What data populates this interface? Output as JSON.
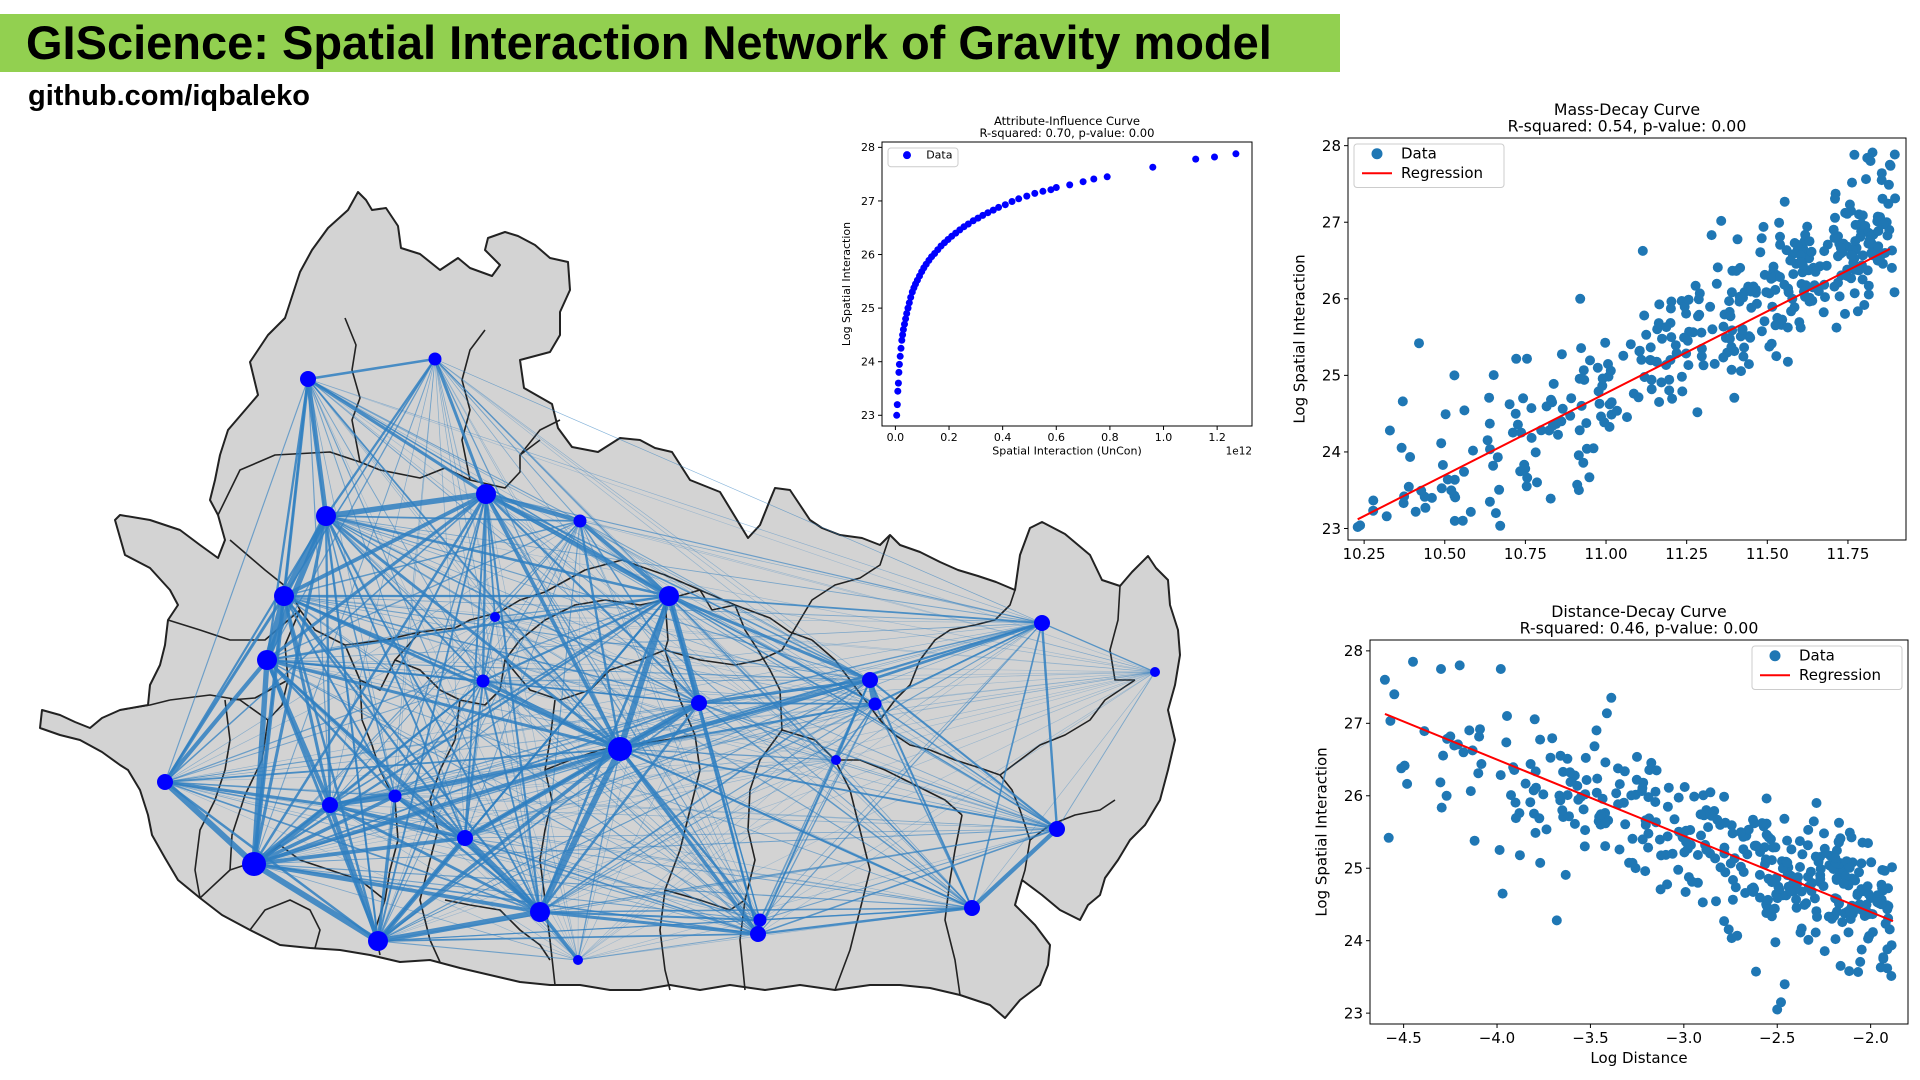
{
  "header": {
    "title": "GIScience: Spatial Interaction Network of Gravity model",
    "subtitle": "github.com/iqbaleko"
  },
  "colors": {
    "title_bar": "#92d050",
    "map_fill": "#d3d3d3",
    "map_border": "#222222",
    "edge": "#2f7fc1",
    "node": "#0000ff",
    "scatter": "#1f77b4",
    "regression": "#ff0000"
  },
  "map": {
    "nodes": [
      {
        "id": "n1",
        "size": 3
      },
      {
        "id": "n2",
        "size": 2
      },
      {
        "id": "n3",
        "size": 4
      },
      {
        "id": "n4",
        "size": 4
      },
      {
        "id": "n5",
        "size": 2
      },
      {
        "id": "n6",
        "size": 4
      },
      {
        "id": "n7",
        "size": 4
      },
      {
        "id": "n8",
        "size": 1
      },
      {
        "id": "n9",
        "size": 4
      },
      {
        "id": "n10",
        "size": 2
      },
      {
        "id": "n11",
        "size": 1
      },
      {
        "id": "n12",
        "size": 3
      },
      {
        "id": "n13",
        "size": 3
      },
      {
        "id": "n14",
        "size": 2
      },
      {
        "id": "n15",
        "size": 3
      },
      {
        "id": "n16",
        "size": 5
      },
      {
        "id": "n17",
        "size": 4
      },
      {
        "id": "n18",
        "size": 1
      },
      {
        "id": "n19",
        "size": 3
      },
      {
        "id": "n20",
        "size": 3
      },
      {
        "id": "n21",
        "size": 3
      },
      {
        "id": "n22",
        "size": 3
      },
      {
        "id": "n23",
        "size": 1
      },
      {
        "id": "n24",
        "size": 5
      },
      {
        "id": "n25",
        "size": 2
      },
      {
        "id": "n26",
        "size": 3
      },
      {
        "id": "n27",
        "size": 2
      },
      {
        "id": "n28",
        "size": 4
      },
      {
        "id": "n29",
        "size": 3
      }
    ]
  },
  "chart_data": [
    {
      "type": "scatter",
      "title": "Attribute-Influence Curve",
      "subtitle": "R-squared: 0.70, p-value: 0.00",
      "xlabel": "Spatial Interaction (UnCon)",
      "ylabel": "Log Spatial Interaction",
      "x_offset_label": "1e12",
      "xlim": [
        -0.05,
        1.33
      ],
      "ylim": [
        22.8,
        28.1
      ],
      "xticks": [
        0.0,
        0.2,
        0.4,
        0.6,
        0.8,
        1.0,
        1.2
      ],
      "xtick_labels": [
        "0.0",
        "0.2",
        "0.4",
        "0.6",
        "0.8",
        "1.0",
        "1.2"
      ],
      "yticks": [
        23,
        24,
        25,
        26,
        27,
        28
      ],
      "legend": {
        "position": "upper left",
        "entries": [
          "Data"
        ]
      },
      "grid": false,
      "color": "#0000ff",
      "series": [
        {
          "name": "Data",
          "curve": "y = 27.78 + 0.92 * ln(x)",
          "x": [
            0.005,
            0.007,
            0.009,
            0.011,
            0.013,
            0.015,
            0.018,
            0.021,
            0.024,
            0.027,
            0.03,
            0.034,
            0.038,
            0.042,
            0.047,
            0.052,
            0.057,
            0.063,
            0.069,
            0.075,
            0.082,
            0.09,
            0.098,
            0.106,
            0.115,
            0.125,
            0.135,
            0.146,
            0.158,
            0.17,
            0.183,
            0.196,
            0.21,
            0.225,
            0.24,
            0.256,
            0.272,
            0.29,
            0.308,
            0.326,
            0.345,
            0.365,
            0.385,
            0.41,
            0.435,
            0.46,
            0.49,
            0.52,
            0.55,
            0.58,
            0.6,
            0.65,
            0.7,
            0.74,
            0.79,
            0.96,
            1.12,
            1.19,
            1.27
          ],
          "y": [
            23.0,
            23.2,
            23.45,
            23.6,
            23.8,
            23.95,
            24.1,
            24.25,
            24.4,
            24.5,
            24.6,
            24.7,
            24.8,
            24.9,
            25.0,
            25.1,
            25.2,
            25.3,
            25.38,
            25.45,
            25.52,
            25.6,
            25.68,
            25.75,
            25.82,
            25.89,
            25.96,
            26.02,
            26.09,
            26.16,
            26.22,
            26.28,
            26.34,
            26.4,
            26.46,
            26.52,
            26.57,
            26.63,
            26.68,
            26.73,
            26.78,
            26.83,
            26.88,
            26.93,
            26.99,
            27.04,
            27.09,
            27.14,
            27.18,
            27.21,
            27.25,
            27.3,
            27.36,
            27.41,
            27.45,
            27.63,
            27.78,
            27.82,
            27.88
          ]
        }
      ]
    },
    {
      "type": "scatter",
      "title": "Mass-Decay Curve",
      "subtitle": "R-squared: 0.54, p-value: 0.00",
      "xlabel": "",
      "ylabel": "Log Spatial Interaction",
      "xlim": [
        10.2,
        11.93
      ],
      "ylim": [
        22.85,
        28.1
      ],
      "xticks": [
        10.25,
        10.5,
        10.75,
        11.0,
        11.25,
        11.5,
        11.75
      ],
      "xtick_labels": [
        "10.25",
        "10.50",
        "10.75",
        "11.00",
        "11.25",
        "11.50",
        "11.75"
      ],
      "yticks": [
        23,
        24,
        25,
        26,
        27,
        28
      ],
      "legend": {
        "position": "upper left",
        "entries": [
          "Data",
          "Regression"
        ]
      },
      "grid": false,
      "series": [
        {
          "name": "Data",
          "color": "#1f77b4",
          "count": 400,
          "x_range": [
            10.23,
            11.9
          ],
          "trend": "y = 2.34*x - 0.87",
          "noise_sd": 0.45,
          "x": [
            10.23,
            10.32,
            10.33,
            10.37,
            10.41,
            10.42,
            10.44,
            10.46,
            10.53,
            10.53,
            10.64,
            10.65,
            10.72,
            10.92,
            11.77,
            11.81,
            11.82,
            11.88
          ],
          "y": [
            23.02,
            23.16,
            24.28,
            24.66,
            23.22,
            25.42,
            23.27,
            23.4,
            23.43,
            25.0,
            23.35,
            23.82,
            24.5,
            26.0,
            27.88,
            27.84,
            27.8,
            27.75
          ]
        },
        {
          "name": "Regression",
          "color": "#ff0000",
          "type": "line",
          "x": [
            10.23,
            11.88
          ],
          "y": [
            23.12,
            26.65
          ]
        }
      ]
    },
    {
      "type": "scatter",
      "title": "Distance-Decay Curve",
      "subtitle": "R-squared: 0.46, p-value: 0.00",
      "xlabel": "Log Distance",
      "ylabel": "Log Spatial Interaction",
      "xlim": [
        -4.68,
        -1.8
      ],
      "ylim": [
        22.85,
        28.15
      ],
      "xticks": [
        -4.5,
        -4.0,
        -3.5,
        -3.0,
        -2.5,
        -2.0
      ],
      "xtick_labels": [
        "−4.5",
        "−4.0",
        "−3.5",
        "−3.0",
        "−2.5",
        "−2.0"
      ],
      "yticks": [
        23,
        24,
        25,
        26,
        27,
        28
      ],
      "legend": {
        "position": "upper right",
        "entries": [
          "Data",
          "Regression"
        ]
      },
      "grid": false,
      "series": [
        {
          "name": "Data",
          "color": "#1f77b4",
          "count": 400,
          "x_range": [
            -4.6,
            -1.88
          ],
          "trend": "y = -1.0*x + 22.45",
          "noise_sd": 0.48,
          "x": [
            -4.6,
            -4.58,
            -4.55,
            -4.45,
            -4.3,
            -4.27,
            -4.25,
            -4.2,
            -4.12,
            -3.98,
            -3.97,
            -3.68,
            -3.6,
            -2.5,
            -2.48,
            -2.46
          ],
          "y": [
            27.6,
            25.42,
            27.4,
            27.85,
            27.75,
            26.0,
            26.82,
            27.8,
            25.38,
            27.75,
            24.65,
            24.28,
            26.2,
            23.05,
            23.15,
            23.4
          ]
        },
        {
          "name": "Regression",
          "color": "#ff0000",
          "type": "line",
          "x": [
            -4.6,
            -1.88
          ],
          "y": [
            27.13,
            24.27
          ]
        }
      ]
    }
  ]
}
